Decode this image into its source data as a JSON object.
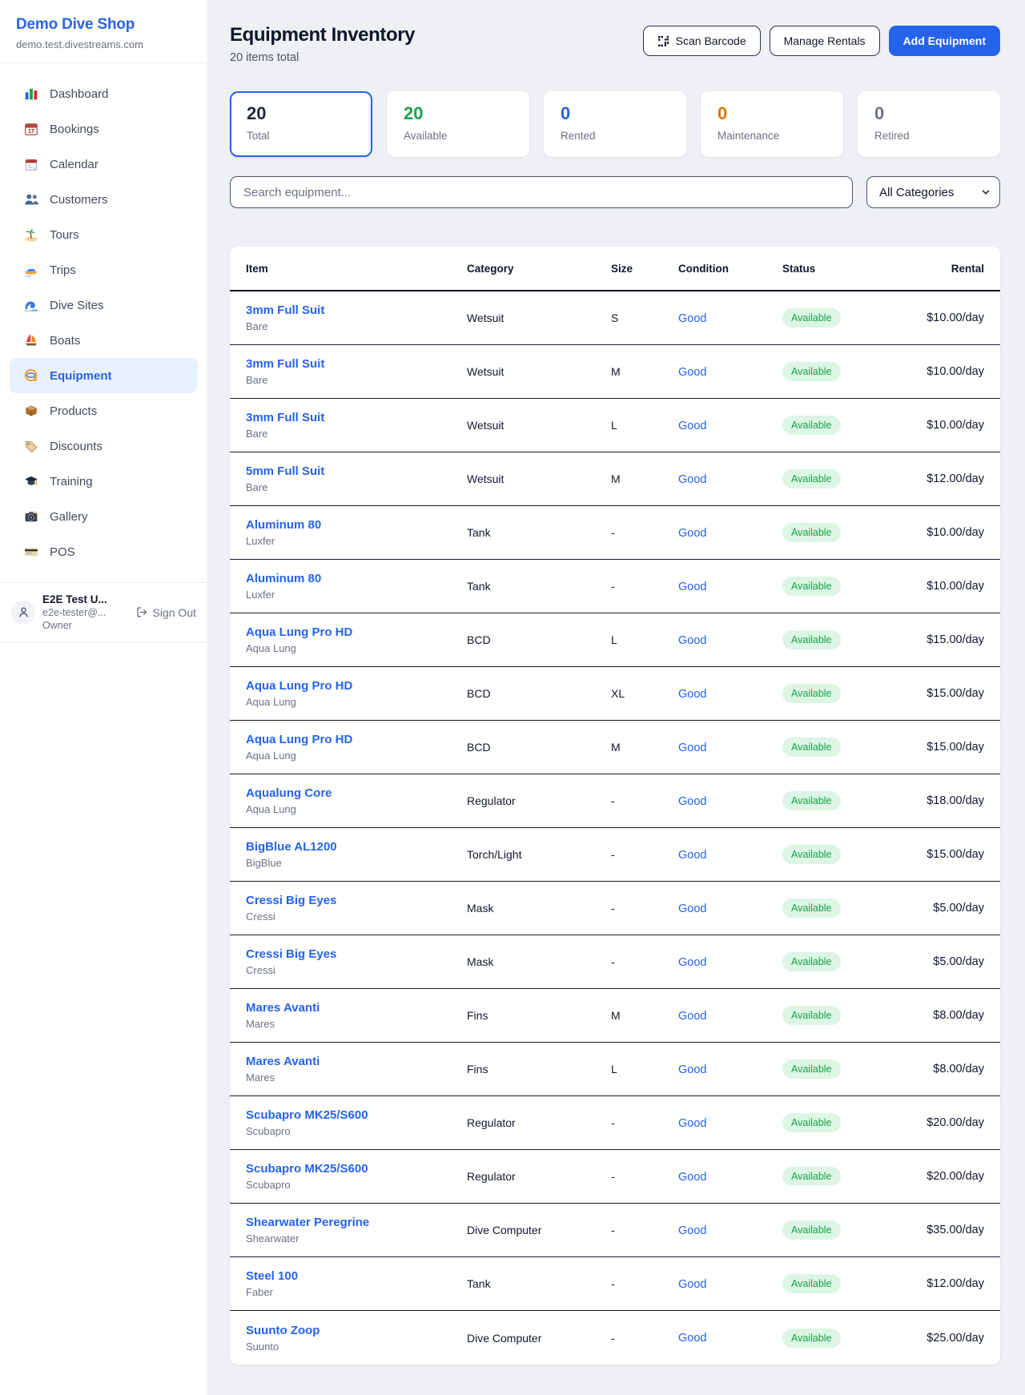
{
  "brand": {
    "name": "Demo Dive Shop",
    "domain": "demo.test.divestreams.com"
  },
  "sidebar": {
    "items": [
      {
        "id": "dashboard",
        "label": "Dashboard",
        "icon": "dashboard-icon",
        "active": false
      },
      {
        "id": "bookings",
        "label": "Bookings",
        "icon": "bookings-icon",
        "active": false
      },
      {
        "id": "calendar",
        "label": "Calendar",
        "icon": "calendar-icon",
        "active": false
      },
      {
        "id": "customers",
        "label": "Customers",
        "icon": "customers-icon",
        "active": false
      },
      {
        "id": "tours",
        "label": "Tours",
        "icon": "tours-icon",
        "active": false
      },
      {
        "id": "trips",
        "label": "Trips",
        "icon": "trips-icon",
        "active": false
      },
      {
        "id": "dive-sites",
        "label": "Dive Sites",
        "icon": "dive-sites-icon",
        "active": false
      },
      {
        "id": "boats",
        "label": "Boats",
        "icon": "boats-icon",
        "active": false
      },
      {
        "id": "equipment",
        "label": "Equipment",
        "icon": "equipment-icon",
        "active": true
      },
      {
        "id": "products",
        "label": "Products",
        "icon": "products-icon",
        "active": false
      },
      {
        "id": "discounts",
        "label": "Discounts",
        "icon": "discounts-icon",
        "active": false
      },
      {
        "id": "training",
        "label": "Training",
        "icon": "training-icon",
        "active": false
      },
      {
        "id": "gallery",
        "label": "Gallery",
        "icon": "gallery-icon",
        "active": false
      },
      {
        "id": "pos",
        "label": "POS",
        "icon": "pos-icon",
        "active": false
      }
    ]
  },
  "user": {
    "name": "E2E Test U...",
    "email": "e2e-tester@...",
    "role": "Owner",
    "sign_out_label": "Sign Out"
  },
  "header": {
    "title": "Equipment Inventory",
    "subtitle": "20 items total",
    "buttons": {
      "scan_barcode": "Scan Barcode",
      "manage_rentals": "Manage Rentals",
      "add_equipment": "Add Equipment"
    }
  },
  "stats": [
    {
      "id": "total",
      "value": "20",
      "label": "Total",
      "color": "#1f2937",
      "selected": true
    },
    {
      "id": "available",
      "value": "20",
      "label": "Available",
      "color": "#16a34a",
      "selected": false
    },
    {
      "id": "rented",
      "value": "0",
      "label": "Rented",
      "color": "#2563eb",
      "selected": false
    },
    {
      "id": "maintenance",
      "value": "0",
      "label": "Maintenance",
      "color": "#d97706",
      "selected": false
    },
    {
      "id": "retired",
      "value": "0",
      "label": "Retired",
      "color": "#6b7280",
      "selected": false
    }
  ],
  "filters": {
    "search_placeholder": "Search equipment...",
    "category_selected": "All Categories"
  },
  "table": {
    "columns": [
      "Item",
      "Category",
      "Size",
      "Condition",
      "Status",
      "Rental"
    ],
    "rows": [
      {
        "name": "3mm Full Suit",
        "brand": "Bare",
        "category": "Wetsuit",
        "size": "S",
        "condition": "Good",
        "status": "Available",
        "rental": "$10.00/day"
      },
      {
        "name": "3mm Full Suit",
        "brand": "Bare",
        "category": "Wetsuit",
        "size": "M",
        "condition": "Good",
        "status": "Available",
        "rental": "$10.00/day"
      },
      {
        "name": "3mm Full Suit",
        "brand": "Bare",
        "category": "Wetsuit",
        "size": "L",
        "condition": "Good",
        "status": "Available",
        "rental": "$10.00/day"
      },
      {
        "name": "5mm Full Suit",
        "brand": "Bare",
        "category": "Wetsuit",
        "size": "M",
        "condition": "Good",
        "status": "Available",
        "rental": "$12.00/day"
      },
      {
        "name": "Aluminum 80",
        "brand": "Luxfer",
        "category": "Tank",
        "size": "-",
        "condition": "Good",
        "status": "Available",
        "rental": "$10.00/day"
      },
      {
        "name": "Aluminum 80",
        "brand": "Luxfer",
        "category": "Tank",
        "size": "-",
        "condition": "Good",
        "status": "Available",
        "rental": "$10.00/day"
      },
      {
        "name": "Aqua Lung Pro HD",
        "brand": "Aqua Lung",
        "category": "BCD",
        "size": "L",
        "condition": "Good",
        "status": "Available",
        "rental": "$15.00/day"
      },
      {
        "name": "Aqua Lung Pro HD",
        "brand": "Aqua Lung",
        "category": "BCD",
        "size": "XL",
        "condition": "Good",
        "status": "Available",
        "rental": "$15.00/day"
      },
      {
        "name": "Aqua Lung Pro HD",
        "brand": "Aqua Lung",
        "category": "BCD",
        "size": "M",
        "condition": "Good",
        "status": "Available",
        "rental": "$15.00/day"
      },
      {
        "name": "Aqualung Core",
        "brand": "Aqua Lung",
        "category": "Regulator",
        "size": "-",
        "condition": "Good",
        "status": "Available",
        "rental": "$18.00/day"
      },
      {
        "name": "BigBlue AL1200",
        "brand": "BigBlue",
        "category": "Torch/Light",
        "size": "-",
        "condition": "Good",
        "status": "Available",
        "rental": "$15.00/day"
      },
      {
        "name": "Cressi Big Eyes",
        "brand": "Cressi",
        "category": "Mask",
        "size": "-",
        "condition": "Good",
        "status": "Available",
        "rental": "$5.00/day"
      },
      {
        "name": "Cressi Big Eyes",
        "brand": "Cressi",
        "category": "Mask",
        "size": "-",
        "condition": "Good",
        "status": "Available",
        "rental": "$5.00/day"
      },
      {
        "name": "Mares Avanti",
        "brand": "Mares",
        "category": "Fins",
        "size": "M",
        "condition": "Good",
        "status": "Available",
        "rental": "$8.00/day"
      },
      {
        "name": "Mares Avanti",
        "brand": "Mares",
        "category": "Fins",
        "size": "L",
        "condition": "Good",
        "status": "Available",
        "rental": "$8.00/day"
      },
      {
        "name": "Scubapro MK25/S600",
        "brand": "Scubapro",
        "category": "Regulator",
        "size": "-",
        "condition": "Good",
        "status": "Available",
        "rental": "$20.00/day"
      },
      {
        "name": "Scubapro MK25/S600",
        "brand": "Scubapro",
        "category": "Regulator",
        "size": "-",
        "condition": "Good",
        "status": "Available",
        "rental": "$20.00/day"
      },
      {
        "name": "Shearwater Peregrine",
        "brand": "Shearwater",
        "category": "Dive Computer",
        "size": "-",
        "condition": "Good",
        "status": "Available",
        "rental": "$35.00/day"
      },
      {
        "name": "Steel 100",
        "brand": "Faber",
        "category": "Tank",
        "size": "-",
        "condition": "Good",
        "status": "Available",
        "rental": "$12.00/day"
      },
      {
        "name": "Suunto Zoop",
        "brand": "Suunto",
        "category": "Dive Computer",
        "size": "-",
        "condition": "Good",
        "status": "Available",
        "rental": "$25.00/day"
      }
    ]
  },
  "colors": {
    "accent": "#2563eb",
    "link": "#2563eb",
    "available_badge_bg": "#ddf5e4",
    "available_badge_text": "#16a34a"
  }
}
